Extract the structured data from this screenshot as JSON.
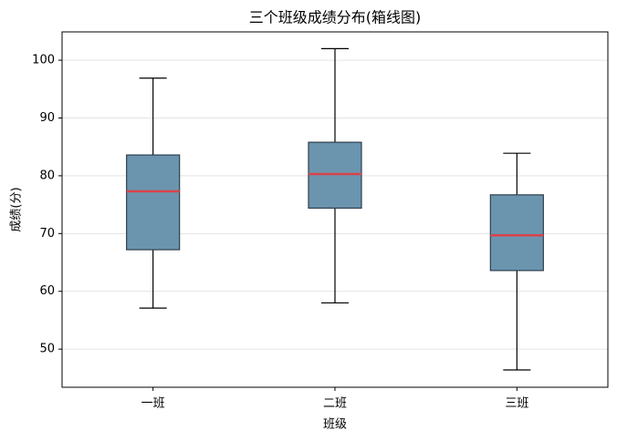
{
  "chart_data": {
    "type": "box",
    "title": "三个班级成绩分布(箱线图)",
    "x_label": "班级",
    "y_label": "成绩(分)",
    "categories": [
      "一班",
      "二班",
      "三班"
    ],
    "whislo": [
      57.1,
      58.0,
      46.4
    ],
    "q1": [
      67.2,
      74.4,
      63.6
    ],
    "med": [
      77.3,
      80.3,
      69.7
    ],
    "q3": [
      83.6,
      85.8,
      76.7
    ],
    "whishi": [
      96.9,
      102.0,
      83.9
    ],
    "box_color": "#5b89a6",
    "median_color": "#d9434b",
    "ylim": [
      43.4,
      104.9
    ],
    "yticks": [
      50,
      60,
      70,
      80,
      90,
      100
    ],
    "grid": true
  }
}
